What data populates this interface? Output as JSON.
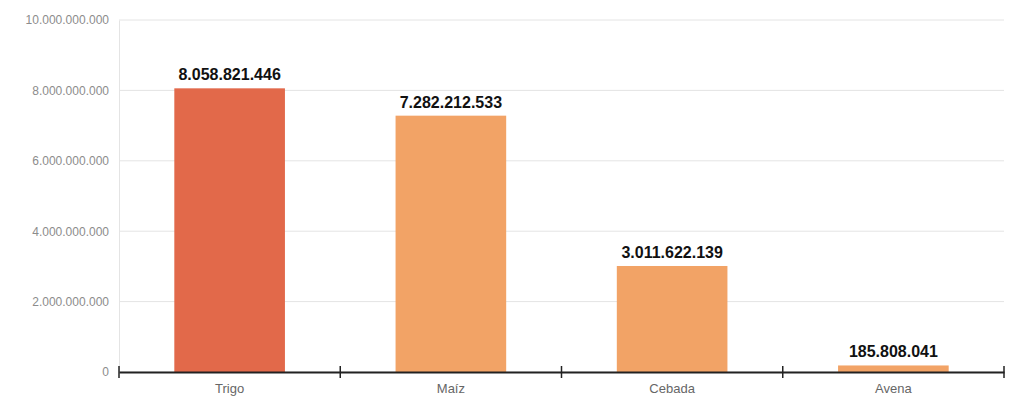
{
  "chart_data": {
    "type": "bar",
    "categories": [
      "Trigo",
      "Maíz",
      "Cebada",
      "Avena"
    ],
    "values": [
      8058821446,
      7282212533,
      3011622139,
      185808041
    ],
    "value_labels": [
      "8.058.821.446",
      "7.282.212.533",
      "3.011.622.139",
      "185.808.041"
    ],
    "colors": [
      "#e2694a",
      "#f2a366",
      "#f2a366",
      "#f2a366"
    ],
    "ylim": [
      0,
      10000000000
    ],
    "yticks": [
      0,
      {
        "value": 2000000000,
        "label": "2.000.000.000"
      },
      {
        "value": 4000000000,
        "label": "4.000.000.000"
      },
      {
        "value": 6000000000,
        "label": "6.000.000.000"
      },
      {
        "value": 8000000000,
        "label": "8.000.000.000"
      },
      {
        "value": 10000000000,
        "label": "10.000.000.000"
      }
    ],
    "grid": true,
    "data_labels": true
  }
}
